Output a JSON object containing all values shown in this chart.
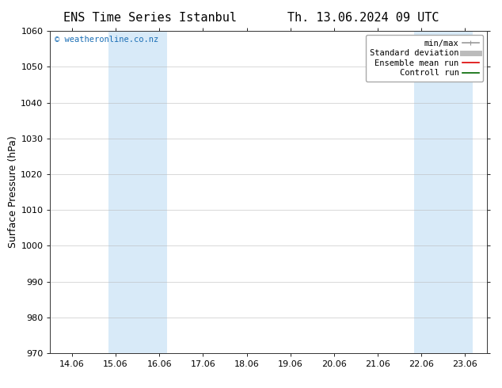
{
  "title_left": "ENS Time Series Istanbul",
  "title_right": "Th. 13.06.2024 09 UTC",
  "ylabel": "Surface Pressure (hPa)",
  "ylim": [
    970,
    1060
  ],
  "yticks": [
    970,
    980,
    990,
    1000,
    1010,
    1020,
    1030,
    1040,
    1050,
    1060
  ],
  "xtick_labels": [
    "14.06",
    "15.06",
    "16.06",
    "17.06",
    "18.06",
    "19.06",
    "20.06",
    "21.06",
    "22.06",
    "23.06"
  ],
  "xtick_positions": [
    0,
    1,
    2,
    3,
    4,
    5,
    6,
    7,
    8,
    9
  ],
  "xlim": [
    -0.5,
    9.5
  ],
  "shaded_bands": [
    {
      "x_start": 0.83,
      "x_end": 2.17,
      "color": "#d8eaf8"
    },
    {
      "x_start": 7.83,
      "x_end": 9.17,
      "color": "#d8eaf8"
    }
  ],
  "shaded_right_edge": {
    "x_start": 9.17,
    "x_end": 9.5,
    "color": "#d8eaf8"
  },
  "watermark": "© weatheronline.co.nz",
  "watermark_color": "#1a6eb5",
  "background_color": "#ffffff",
  "plot_bg_color": "#ffffff",
  "grid_color": "#bbbbbb",
  "legend_items": [
    {
      "label": "min/max",
      "color": "#999999",
      "lw": 1.2,
      "style": "solid"
    },
    {
      "label": "Standard deviation",
      "color": "#bbbbbb",
      "lw": 5,
      "style": "solid"
    },
    {
      "label": "Ensemble mean run",
      "color": "#dd0000",
      "lw": 1.2,
      "style": "solid"
    },
    {
      "label": "Controll run",
      "color": "#006600",
      "lw": 1.2,
      "style": "solid"
    }
  ],
  "title_fontsize": 11,
  "axis_label_fontsize": 9,
  "tick_fontsize": 8,
  "legend_fontsize": 7.5
}
